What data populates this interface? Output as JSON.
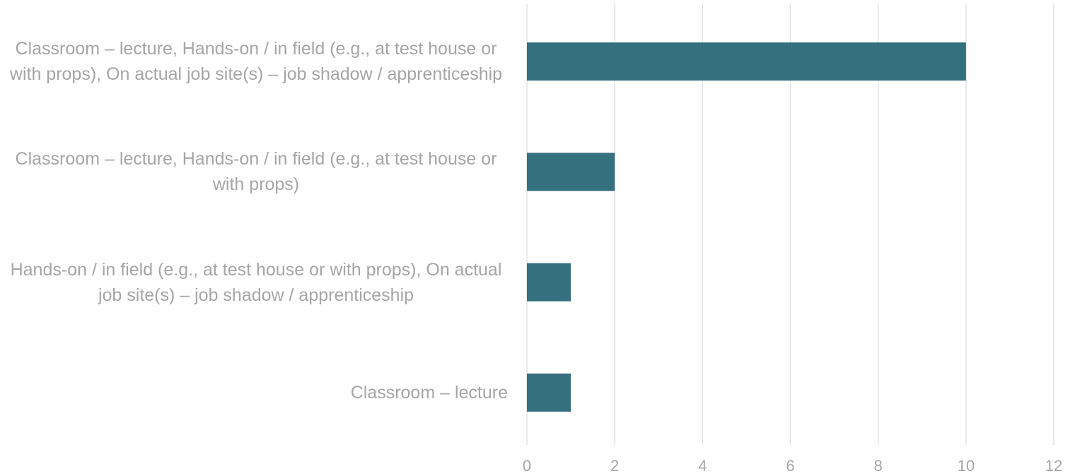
{
  "chart_data": {
    "type": "bar",
    "orientation": "horizontal",
    "categories": [
      "Classroom – lecture, Hands-on / in field (e.g., at test house or with props), On actual job site(s) – job shadow / apprenticeship",
      "Classroom – lecture, Hands-on / in field (e.g., at test house or with props)",
      "Hands-on / in field (e.g., at test house or with props), On actual job site(s) – job shadow / apprenticeship",
      "Classroom – lecture"
    ],
    "values": [
      10,
      2,
      1,
      1
    ],
    "color": "#35707f",
    "xlim": [
      0,
      12
    ],
    "xticks": [
      0,
      2,
      4,
      6,
      8,
      10,
      12
    ],
    "grid": true
  }
}
